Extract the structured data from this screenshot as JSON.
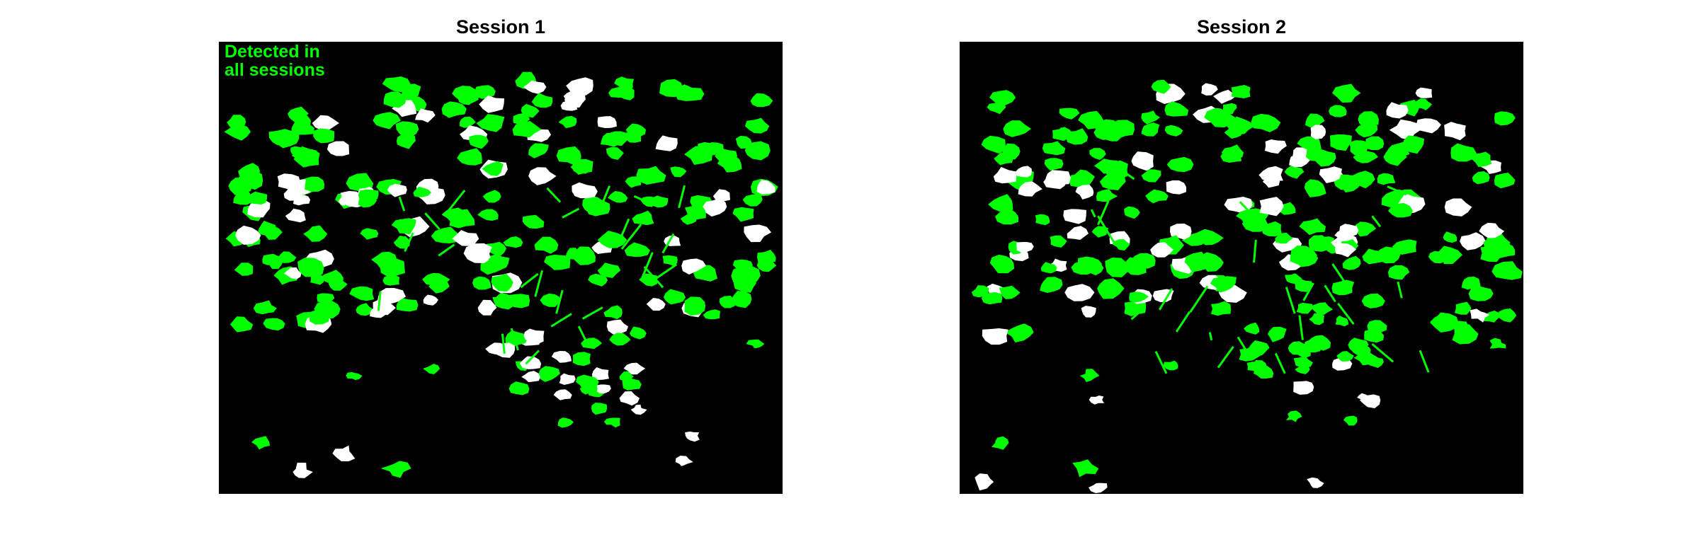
{
  "panels": [
    {
      "title": "Session 1"
    },
    {
      "title": "Session 2"
    }
  ],
  "legend": {
    "line1": "Detected in",
    "line2": "all sessions",
    "color": "#00ff00"
  },
  "colors": {
    "detected_all_sessions": "#00ff00",
    "other_cells": "#ffffff",
    "background": "#000000"
  }
}
